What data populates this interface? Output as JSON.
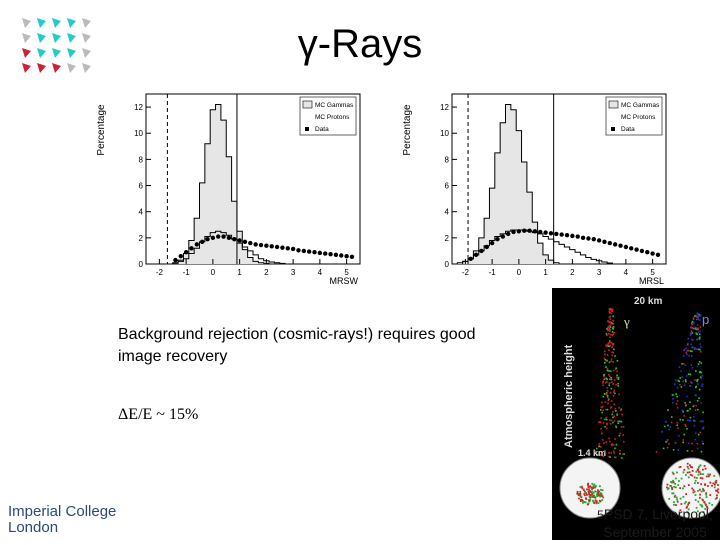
{
  "title": "γ-Rays",
  "body_text": {
    "rejection": "Background rejection (cosmic-rays!) requires good image recovery",
    "resolution": "ΔE/E ~ 15%"
  },
  "footer": {
    "line1": "PSD 7, Liverpool,",
    "line2": "September 2005",
    "slide_number": "5"
  },
  "logo": {
    "line1": "Imperial College",
    "line2": "London"
  },
  "shower_image": {
    "height_label": "20 km",
    "low_label": "1.4 km",
    "ylabel": "Atmospheric height",
    "gamma_label": "γ",
    "proton_label": "p"
  },
  "colors": {
    "hist_fill": "#e6e6e6",
    "shower_gamma": "#cc2222",
    "shower_proton": "#2233cc",
    "accent": "#22cccc"
  },
  "chart_data": [
    {
      "type": "bar",
      "xlabel": "MRSW",
      "ylabel": "Percentage",
      "xlim": [
        -2.5,
        5.5
      ],
      "ylim": [
        0,
        13
      ],
      "x_ticks": [
        -2,
        -1,
        0,
        1,
        2,
        3,
        4,
        5
      ],
      "y_ticks": [
        0,
        2,
        4,
        6,
        8,
        10,
        12
      ],
      "cuts": [
        -1.7,
        0.9
      ],
      "legend_placement": "top-right",
      "bin_width": 0.2,
      "series": [
        {
          "name": "MC Gammas",
          "style": "filled-histogram",
          "x": [
            -1.4,
            -1.2,
            -1.0,
            -0.8,
            -0.6,
            -0.4,
            -0.2,
            0.0,
            0.2,
            0.4,
            0.6,
            0.8,
            1.0,
            1.2,
            1.4,
            1.6,
            1.8,
            2.0
          ],
          "values": [
            0.1,
            0.3,
            0.8,
            1.8,
            3.5,
            6.2,
            9.2,
            11.8,
            12.2,
            11.0,
            8.2,
            4.8,
            2.5,
            1.1,
            0.5,
            0.2,
            0.1,
            0.05
          ]
        },
        {
          "name": "MC Protons",
          "style": "outline-histogram",
          "x": [
            -1.4,
            -1.2,
            -1.0,
            -0.8,
            -0.6,
            -0.4,
            -0.2,
            0.0,
            0.2,
            0.4,
            0.6,
            0.8,
            1.0,
            1.2,
            1.4,
            1.6,
            1.8,
            2.0,
            2.2,
            2.4,
            2.6
          ],
          "values": [
            0.05,
            0.2,
            0.4,
            0.8,
            1.2,
            1.7,
            2.1,
            2.4,
            2.5,
            2.4,
            2.2,
            1.9,
            1.6,
            1.3,
            1.0,
            0.7,
            0.4,
            0.25,
            0.15,
            0.1,
            0.05
          ]
        },
        {
          "name": "Data",
          "style": "points",
          "x": [
            -1.4,
            -1.2,
            -1.0,
            -0.8,
            -0.6,
            -0.4,
            -0.2,
            0.0,
            0.2,
            0.4,
            0.6,
            0.8,
            1.0,
            1.2,
            1.4,
            1.6,
            1.8,
            2.0,
            2.2,
            2.4,
            2.6,
            2.8,
            3.0,
            3.2,
            3.4,
            3.6,
            3.8,
            4.0,
            4.2,
            4.4,
            4.6,
            4.8,
            5.0,
            5.2
          ],
          "values": [
            0.3,
            0.6,
            0.9,
            1.2,
            1.5,
            1.7,
            1.9,
            2.0,
            2.1,
            2.1,
            2.0,
            1.9,
            1.8,
            1.7,
            1.6,
            1.5,
            1.45,
            1.4,
            1.35,
            1.3,
            1.25,
            1.2,
            1.15,
            1.05,
            1.0,
            0.95,
            0.9,
            0.85,
            0.8,
            0.75,
            0.7,
            0.65,
            0.6,
            0.55
          ]
        }
      ]
    },
    {
      "type": "bar",
      "xlabel": "MRSL",
      "ylabel": "Percentage",
      "xlim": [
        -2.5,
        5.5
      ],
      "ylim": [
        0,
        13
      ],
      "x_ticks": [
        -2,
        -1,
        0,
        1,
        2,
        3,
        4,
        5
      ],
      "y_ticks": [
        0,
        2,
        4,
        6,
        8,
        10,
        12
      ],
      "cuts": [
        -1.9,
        1.3
      ],
      "legend_placement": "top-right",
      "bin_width": 0.2,
      "series": [
        {
          "name": "MC Gammas",
          "style": "filled-histogram",
          "x": [
            -2.2,
            -2.0,
            -1.8,
            -1.6,
            -1.4,
            -1.2,
            -1.0,
            -0.8,
            -0.6,
            -0.4,
            -0.2,
            0.0,
            0.2,
            0.4,
            0.6,
            0.8,
            1.0,
            1.2,
            1.4
          ],
          "values": [
            0.1,
            0.2,
            0.4,
            1.0,
            2.0,
            3.5,
            5.8,
            8.5,
            10.8,
            12.2,
            11.8,
            10.2,
            7.8,
            5.5,
            3.2,
            1.6,
            0.7,
            0.3,
            0.1
          ]
        },
        {
          "name": "MC Protons",
          "style": "outline-histogram",
          "x": [
            -2.0,
            -1.8,
            -1.6,
            -1.4,
            -1.2,
            -1.0,
            -0.8,
            -0.6,
            -0.4,
            -0.2,
            0.0,
            0.2,
            0.4,
            0.6,
            0.8,
            1.0,
            1.2,
            1.4,
            1.6,
            1.8,
            2.0,
            2.2,
            2.4,
            2.6,
            2.8,
            3.0,
            3.2,
            3.4
          ],
          "values": [
            0.2,
            0.4,
            0.7,
            1.0,
            1.4,
            1.8,
            2.1,
            2.3,
            2.5,
            2.6,
            2.6,
            2.6,
            2.5,
            2.4,
            2.3,
            2.1,
            1.9,
            1.7,
            1.5,
            1.3,
            1.1,
            0.9,
            0.7,
            0.5,
            0.35,
            0.25,
            0.15,
            0.08
          ]
        },
        {
          "name": "Data",
          "style": "points",
          "x": [
            -1.8,
            -1.6,
            -1.4,
            -1.2,
            -1.0,
            -0.8,
            -0.6,
            -0.4,
            -0.2,
            0.0,
            0.2,
            0.4,
            0.6,
            0.8,
            1.0,
            1.2,
            1.4,
            1.6,
            1.8,
            2.0,
            2.2,
            2.4,
            2.6,
            2.8,
            3.0,
            3.2,
            3.4,
            3.6,
            3.8,
            4.0,
            4.2,
            4.4,
            4.6,
            4.8,
            5.0,
            5.2
          ],
          "values": [
            0.4,
            0.7,
            1.0,
            1.3,
            1.6,
            1.9,
            2.1,
            2.3,
            2.45,
            2.5,
            2.55,
            2.55,
            2.5,
            2.45,
            2.4,
            2.35,
            2.3,
            2.25,
            2.2,
            2.15,
            2.1,
            2.0,
            1.95,
            1.9,
            1.8,
            1.7,
            1.6,
            1.5,
            1.4,
            1.3,
            1.2,
            1.1,
            1.0,
            0.9,
            0.8,
            0.7
          ]
        }
      ]
    }
  ]
}
